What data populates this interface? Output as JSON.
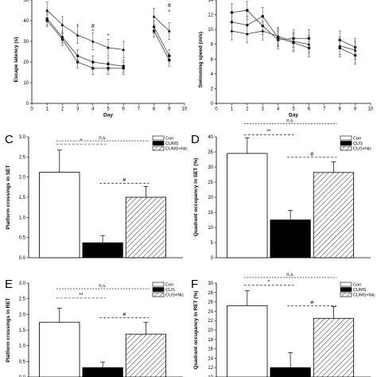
{
  "colors": {
    "ink": "#000000",
    "paper": "#ffffff",
    "series_line": "#555555"
  },
  "chart_data": [
    {
      "id": "A",
      "type": "line",
      "letter": "",
      "xlabel": "Day",
      "ylabel": "Escape latency (s)",
      "xlim": [
        0,
        10
      ],
      "ylim": [
        0,
        50
      ],
      "xticks": [
        "0",
        "1",
        "2",
        "3",
        "4",
        "5",
        "6",
        "7",
        "8",
        "9",
        "10"
      ],
      "yticks": [
        "0",
        "10",
        "20",
        "30",
        "40",
        "50"
      ],
      "series": [
        {
          "marker": "square",
          "segments": [
            [
              1,
              2,
              3,
              4,
              5,
              6
            ],
            [
              8,
              9
            ]
          ],
          "x": [
            1,
            2,
            3,
            4,
            5,
            6,
            8,
            9
          ],
          "y": [
            40,
            31,
            20,
            17,
            17,
            17,
            35,
            21
          ],
          "err": [
            3,
            3,
            3,
            3,
            3,
            3,
            3,
            3
          ]
        },
        {
          "marker": "circle",
          "segments": [
            [
              1,
              2,
              3,
              4,
              5,
              6
            ],
            [
              8,
              9
            ]
          ],
          "x": [
            1,
            2,
            3,
            4,
            5,
            6,
            8,
            9
          ],
          "y": [
            41,
            32,
            23,
            20,
            19,
            18,
            37,
            23
          ],
          "err": [
            3,
            3,
            3,
            3,
            3,
            3,
            3,
            3
          ]
        },
        {
          "marker": "triangle",
          "segments": [
            [
              1,
              2,
              3,
              4,
              5,
              6
            ],
            [
              8,
              9
            ]
          ],
          "x": [
            1,
            2,
            3,
            4,
            5,
            6,
            8,
            9
          ],
          "y": [
            45,
            38,
            33,
            30,
            27,
            26,
            42,
            35
          ],
          "err": [
            4,
            4,
            4,
            4,
            4,
            4,
            4,
            4
          ]
        }
      ],
      "annotations": [
        {
          "text": "*",
          "x": 3,
          "y": 36.5
        },
        {
          "text": "#",
          "x": 4,
          "y": 36.5
        },
        {
          "text": "*",
          "x": 4,
          "y": 34
        },
        {
          "text": "*",
          "x": 5,
          "y": 32
        },
        {
          "text": "#",
          "x": 9,
          "y": 46.5
        },
        {
          "text": "*",
          "x": 9,
          "y": 43.5
        }
      ]
    },
    {
      "id": "B",
      "type": "line",
      "letter": "",
      "xlabel": "Day",
      "ylabel": "Swimming speed (m/s)",
      "xlim": [
        0,
        10
      ],
      "ylim": [
        0,
        14
      ],
      "xticks": [
        "0",
        "1",
        "2",
        "3",
        "4",
        "5",
        "6",
        "7",
        "8",
        "9",
        "10"
      ],
      "yticks": [
        "0",
        "2",
        "4",
        "6",
        "8",
        "10",
        "12",
        "14"
      ],
      "series": [
        {
          "marker": "square",
          "segments": [
            [
              1,
              2,
              3,
              4,
              5,
              6
            ],
            [
              8,
              9
            ]
          ],
          "x": [
            1,
            2,
            3,
            4,
            5,
            6,
            8,
            9
          ],
          "y": [
            12.3,
            12.6,
            10.5,
            8.6,
            8.8,
            8.8,
            8.6,
            7.6
          ],
          "err": [
            1.2,
            1.2,
            1.2,
            1.2,
            1.2,
            1.2,
            1.2,
            1.2
          ]
        },
        {
          "marker": "circle",
          "segments": [
            [
              1,
              2,
              3,
              4,
              5,
              6
            ],
            [
              8,
              9
            ]
          ],
          "x": [
            1,
            2,
            3,
            4,
            5,
            6,
            8,
            9
          ],
          "y": [
            11,
            10.6,
            11.8,
            8.9,
            8.2,
            7.5,
            7.5,
            6.5
          ],
          "err": [
            1.2,
            1.2,
            1.2,
            1.2,
            1.2,
            1.2,
            1.2,
            1.2
          ]
        },
        {
          "marker": "triangle",
          "segments": [
            [
              1,
              2,
              3,
              4,
              5,
              6
            ],
            [
              8,
              9
            ]
          ],
          "x": [
            1,
            2,
            3,
            4,
            5,
            6,
            8,
            9
          ],
          "y": [
            9.8,
            9.4,
            9.8,
            9.1,
            8.4,
            8,
            7.8,
            7.2
          ],
          "err": [
            1.2,
            1.2,
            1.2,
            1.2,
            1.2,
            1.2,
            1.2,
            1.2
          ]
        }
      ],
      "annotations": []
    },
    {
      "id": "C",
      "type": "bar",
      "letter": "C",
      "ylabel": "Platform crossings in SET",
      "ylim": [
        0,
        3.0
      ],
      "yticks": [
        "0.0",
        "0.5",
        "1.0",
        "1.5",
        "2.0",
        "2.5",
        "3.0"
      ],
      "categories": [
        "Con",
        "CUMS",
        "CUMS+Nic"
      ],
      "legend": [
        "Con",
        "CUMS",
        "CUMS+Nic"
      ],
      "values": [
        2.12,
        0.37,
        1.5
      ],
      "err": [
        0.55,
        0.18,
        0.27
      ],
      "fills": [
        "white",
        "black",
        "hatch"
      ],
      "brackets": [
        {
          "from": 0,
          "to": 2,
          "label": "n.s.",
          "y": 2.9
        },
        {
          "from": 0,
          "to": 1,
          "label": "*",
          "y": 2.82
        },
        {
          "from": 1,
          "to": 2,
          "label": "#",
          "y": 1.85
        }
      ]
    },
    {
      "id": "D",
      "type": "bar",
      "letter": "D",
      "ylabel": "Quadrant occupancy in SET (%)",
      "ylim": [
        0,
        40
      ],
      "yticks": [
        "0",
        "5",
        "10",
        "15",
        "20",
        "25",
        "30",
        "35",
        "40"
      ],
      "categories": [
        "Con",
        "CUS",
        "CUS+Nic"
      ],
      "legend": [
        "Con",
        "CUS",
        "CUS+Nic"
      ],
      "values": [
        34.5,
        12.5,
        28.2
      ],
      "err": [
        5.2,
        3.2,
        3.5
      ],
      "fills": [
        "white",
        "black",
        "hatch"
      ],
      "brackets": [
        {
          "from": 0,
          "to": 2,
          "label": "n.s.",
          "y": 44.3
        },
        {
          "from": 0,
          "to": 1,
          "label": "**",
          "y": 40.6
        },
        {
          "from": 1,
          "to": 2,
          "label": "#",
          "y": 33.2
        }
      ]
    },
    {
      "id": "E",
      "type": "bar",
      "letter": "E",
      "ylabel": "Platform crossings in RET",
      "ylim": [
        0,
        3.0
      ],
      "yticks": [
        "0.0",
        "0.5",
        "1.0",
        "1.5",
        "2.0",
        "2.5",
        "3.0"
      ],
      "categories": [
        "Con",
        "CUS",
        "CUS+Nic"
      ],
      "legend": [
        "Con",
        "CUS",
        "CUS+Nic"
      ],
      "values": [
        1.75,
        0.3,
        1.37
      ],
      "err": [
        0.45,
        0.18,
        0.38
      ],
      "fills": [
        "white",
        "black",
        "hatch"
      ],
      "brackets": [
        {
          "from": 0,
          "to": 2,
          "label": "n.s.",
          "y": 2.82
        },
        {
          "from": 0,
          "to": 1,
          "label": "**",
          "y": 2.52
        },
        {
          "from": 1,
          "to": 2,
          "label": "#",
          "y": 1.9
        }
      ]
    },
    {
      "id": "F",
      "type": "bar",
      "letter": "F",
      "ylabel": "Quadrant occupancy in RET (%)",
      "ylim": [
        10,
        30
      ],
      "yticks": [
        "10",
        "12",
        "14",
        "16",
        "18",
        "20",
        "22",
        "24",
        "26",
        "28",
        "30"
      ],
      "categories": [
        "Con",
        "CUMS",
        "CUMS+Nic"
      ],
      "legend": [
        "Con",
        "CUMS",
        "CUMS+Nic"
      ],
      "values": [
        25.2,
        12.0,
        22.5
      ],
      "err": [
        3.2,
        3.2,
        2.5
      ],
      "fills": [
        "white",
        "black",
        "hatch"
      ],
      "brackets": [
        {
          "from": 0,
          "to": 2,
          "label": "n.s.",
          "y": 31.2
        },
        {
          "from": 0,
          "to": 1,
          "label": "*",
          "y": 29.6
        },
        {
          "from": 1,
          "to": 2,
          "label": "#",
          "y": 25.2
        }
      ]
    }
  ]
}
